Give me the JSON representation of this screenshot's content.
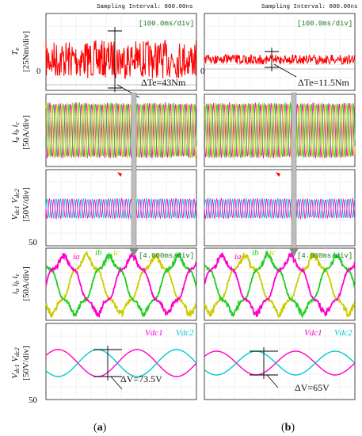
{
  "header": {
    "a": "Sampling Interval:  800.00ns",
    "b": "Sampling Interval:  800.00ns"
  },
  "scales": {
    "a_top": "[100.0ms/div]",
    "b_top": "[100.0ms/div]",
    "a_zoom": "[4.000ms/div]",
    "b_zoom": "[4.000ms/div]"
  },
  "ylabels": {
    "torque": "Te  [25Nm/div]",
    "currents": "ia ib ic  [50A/div]",
    "voltages": "Vdc1 Vdc2  [50V/div]",
    "currents_zoom": "ia ib ic  [50A/div]",
    "voltages_zoom": "Vdc1 Vdc2  [50V/div]"
  },
  "annotations": {
    "a_torque": "ΔTe=43Nm",
    "b_torque": "ΔTe=11.5Nm",
    "a_voltage": "ΔV=73.5V",
    "b_voltage": "ΔV=65V"
  },
  "ticks": {
    "a_torque_zero": "0",
    "b_torque_zero": "0",
    "a_voltage_50": "50",
    "a_voltage_zoom_50": "50"
  },
  "captions": {
    "a": "(a)",
    "b": "(b)"
  },
  "legend": {
    "ia": "ia",
    "ib": "ib",
    "ic": "ic",
    "vdc1": "Vdc1",
    "vdc2": "Vdc2"
  },
  "colors": {
    "torque": "#ff0000",
    "ia": "#ff00cc",
    "ib": "#22cc22",
    "ic": "#cccc00",
    "vdc1": "#ff00cc",
    "vdc2": "#00cccc",
    "panel_bg": "#ffffff",
    "frame": "#444444"
  },
  "chart_data": [
    {
      "type": "line",
      "panel": "torque",
      "columns": [
        "a",
        "b"
      ],
      "series": [
        {
          "column": "a",
          "ripple_Nm": 43
        },
        {
          "column": "b",
          "ripple_Nm": 11.5
        }
      ],
      "ylabel": "Te [25Nm/div]",
      "time_div": "100.0ms/div"
    },
    {
      "type": "line",
      "panel": "phase_currents",
      "time_div": "100.0ms/div",
      "series": [
        {
          "name": "ia"
        },
        {
          "name": "ib"
        },
        {
          "name": "ic"
        }
      ],
      "ylabel": "ia ib ic [50A/div]"
    },
    {
      "type": "line",
      "panel": "dc_link_voltages",
      "time_div": "100.0ms/div",
      "series": [
        {
          "name": "Vdc1"
        },
        {
          "name": "Vdc2"
        }
      ],
      "ylabel": "Vdc1 Vdc2 [50V/div]"
    },
    {
      "type": "line",
      "panel": "phase_currents_zoom",
      "time_div": "4.000ms/div",
      "series": [
        {
          "name": "ia"
        },
        {
          "name": "ib"
        },
        {
          "name": "ic"
        }
      ],
      "ylabel": "ia ib ic [50A/div]"
    },
    {
      "type": "line",
      "panel": "dc_link_voltages_zoom",
      "time_div": "4.000ms/div",
      "series": [
        {
          "name": "Vdc1"
        },
        {
          "name": "Vdc2"
        }
      ],
      "ripple_V": {
        "a": 73.5,
        "b": 65
      },
      "ylabel": "Vdc1 Vdc2 [50V/div]"
    }
  ]
}
